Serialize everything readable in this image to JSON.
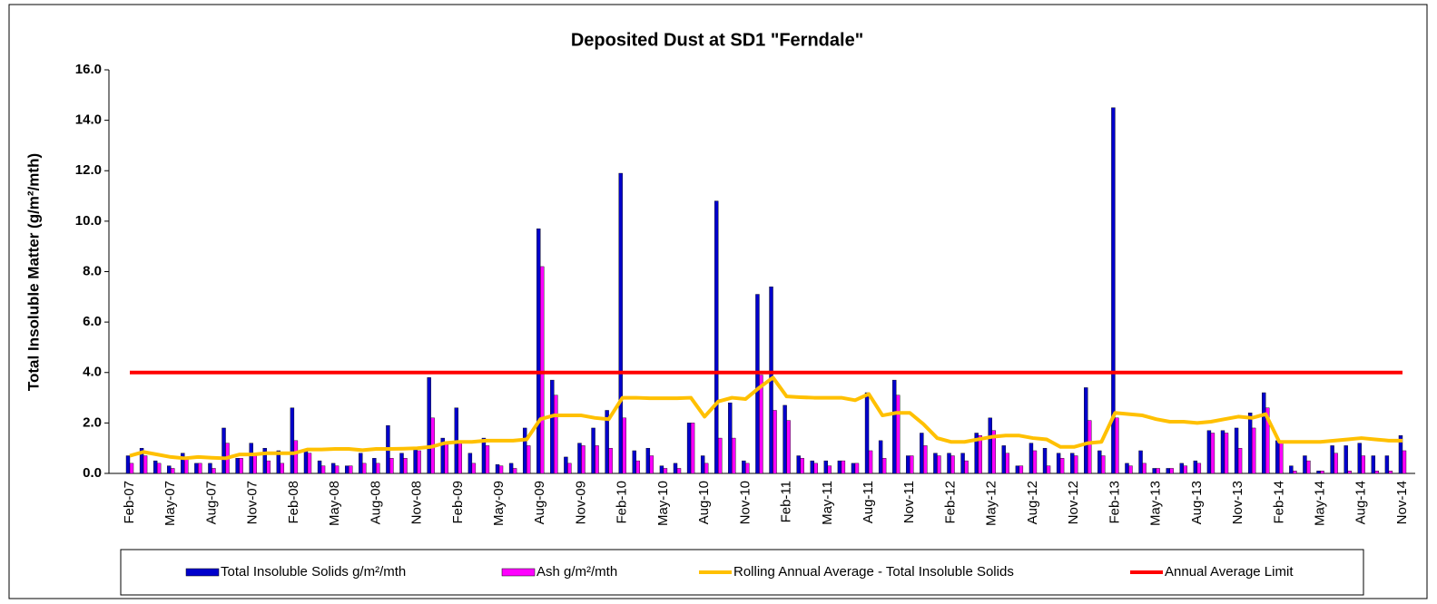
{
  "chart_data": {
    "type": "bar",
    "title": "Deposited Dust at SD1 \"Ferndale\"",
    "y_label": "Total Insoluble Matter  (g/m²/mth)",
    "categories": [
      "Feb-07",
      null,
      null,
      "May-07",
      null,
      null,
      "Aug-07",
      null,
      null,
      "Nov-07",
      null,
      null,
      "Feb-08",
      null,
      null,
      "May-08",
      null,
      null,
      "Aug-08",
      null,
      null,
      "Nov-08",
      null,
      null,
      "Feb-09",
      null,
      null,
      "May-09",
      null,
      null,
      "Aug-09",
      null,
      null,
      "Nov-09",
      null,
      null,
      "Feb-10",
      null,
      null,
      "May-10",
      null,
      null,
      "Aug-10",
      null,
      null,
      "Nov-10",
      null,
      null,
      "Feb-11",
      null,
      null,
      "May-11",
      null,
      null,
      "Aug-11",
      null,
      null,
      "Nov-11",
      null,
      null,
      "Feb-12",
      null,
      null,
      "May-12",
      null,
      null,
      "Aug-12",
      null,
      null,
      "Nov-12",
      null,
      null,
      "Feb-13",
      null,
      null,
      "May-13",
      null,
      null,
      "Aug-13",
      null,
      null,
      "Nov-13",
      null,
      null,
      "Feb-14",
      null,
      null,
      "May-14",
      null,
      null,
      "Aug-14",
      null,
      null,
      "Nov-14"
    ],
    "series": [
      {
        "name": "Total Insoluble Solids  g/m²/mth",
        "type": "bar",
        "color": "#0000cc",
        "values": [
          0.7,
          1.0,
          0.5,
          0.3,
          0.8,
          0.4,
          0.4,
          1.8,
          0.6,
          1.2,
          1.0,
          0.9,
          2.6,
          0.9,
          0.5,
          0.4,
          0.3,
          0.8,
          0.6,
          1.9,
          0.8,
          1.0,
          3.8,
          1.4,
          2.6,
          0.8,
          1.4,
          0.35,
          0.4,
          1.8,
          9.7,
          3.7,
          0.65,
          1.2,
          1.8,
          2.5,
          11.9,
          0.9,
          1.0,
          0.3,
          0.4,
          2.0,
          0.7,
          10.8,
          2.8,
          0.5,
          7.1,
          7.4,
          2.7,
          0.7,
          0.5,
          0.5,
          0.5,
          0.4,
          3.2,
          1.3,
          3.7,
          0.7,
          1.6,
          0.8,
          0.8,
          0.8,
          1.6,
          2.2,
          1.1,
          0.3,
          1.2,
          1.0,
          0.8,
          0.8,
          3.4,
          0.9,
          14.5,
          0.4,
          0.9,
          0.2,
          0.2,
          0.4,
          0.5,
          1.7,
          1.7,
          1.8,
          2.4,
          3.2,
          1.3,
          0.3,
          0.7,
          0.1,
          1.1,
          1.1,
          1.2,
          0.7,
          0.7,
          1.5
        ]
      },
      {
        "name": "Ash  g/m²/mth",
        "type": "bar",
        "color": "#ff00ff",
        "values": [
          0.4,
          0.7,
          0.4,
          0.2,
          0.6,
          0.4,
          0.2,
          1.2,
          0.6,
          0.7,
          0.5,
          0.4,
          1.3,
          0.8,
          0.3,
          0.3,
          0.3,
          0.4,
          0.4,
          0.6,
          0.6,
          0.9,
          2.2,
          1.2,
          1.2,
          0.4,
          1.1,
          0.3,
          0.2,
          1.1,
          8.2,
          3.1,
          0.4,
          1.1,
          1.1,
          1.0,
          2.2,
          0.5,
          0.7,
          0.2,
          0.2,
          2.0,
          0.4,
          1.4,
          1.4,
          0.4,
          3.9,
          2.5,
          2.1,
          0.6,
          0.4,
          0.3,
          0.5,
          0.4,
          0.9,
          0.6,
          3.1,
          0.7,
          1.1,
          0.7,
          0.7,
          0.5,
          1.5,
          1.7,
          0.8,
          0.3,
          0.9,
          0.3,
          0.6,
          0.7,
          2.1,
          0.7,
          2.2,
          0.3,
          0.4,
          0.2,
          0.2,
          0.3,
          0.4,
          1.6,
          1.6,
          1.0,
          1.8,
          2.6,
          1.2,
          0.1,
          0.5,
          0.1,
          0.8,
          0.1,
          0.7,
          0.1,
          0.1,
          0.9
        ]
      },
      {
        "name": "Rolling Annual Average - Total Insoluble Solids",
        "type": "line",
        "color": "#ffc000",
        "values": [
          0.7,
          0.85,
          0.75,
          0.65,
          0.6,
          0.65,
          0.62,
          0.6,
          0.75,
          0.75,
          0.8,
          0.8,
          0.8,
          0.95,
          0.95,
          0.97,
          0.97,
          0.92,
          0.97,
          0.97,
          0.98,
          1.0,
          1.05,
          1.2,
          1.25,
          1.25,
          1.3,
          1.3,
          1.3,
          1.35,
          2.15,
          2.3,
          2.3,
          2.3,
          2.2,
          2.15,
          3.0,
          3.0,
          2.98,
          2.98,
          2.98,
          3.0,
          2.25,
          2.85,
          3.0,
          2.95,
          3.4,
          3.8,
          3.05,
          3.02,
          3.0,
          3.0,
          3.0,
          2.9,
          3.15,
          2.3,
          2.4,
          2.4,
          1.95,
          1.4,
          1.25,
          1.25,
          1.35,
          1.45,
          1.5,
          1.5,
          1.4,
          1.35,
          1.05,
          1.05,
          1.2,
          1.25,
          2.4,
          2.35,
          2.3,
          2.15,
          2.05,
          2.05,
          2.0,
          2.05,
          2.15,
          2.25,
          2.2,
          2.35,
          1.25,
          1.25,
          1.25,
          1.25,
          1.3,
          1.35,
          1.4,
          1.35,
          1.3,
          1.3
        ]
      },
      {
        "name": "Annual Average Limit",
        "type": "line",
        "color": "#ff0000",
        "values": [
          4,
          4,
          4,
          4,
          4,
          4,
          4,
          4,
          4,
          4,
          4,
          4,
          4,
          4,
          4,
          4,
          4,
          4,
          4,
          4,
          4,
          4,
          4,
          4,
          4,
          4,
          4,
          4,
          4,
          4,
          4,
          4,
          4,
          4,
          4,
          4,
          4,
          4,
          4,
          4,
          4,
          4,
          4,
          4,
          4,
          4,
          4,
          4,
          4,
          4,
          4,
          4,
          4,
          4,
          4,
          4,
          4,
          4,
          4,
          4,
          4,
          4,
          4,
          4,
          4,
          4,
          4,
          4,
          4,
          4,
          4,
          4,
          4,
          4,
          4,
          4,
          4,
          4,
          4,
          4,
          4,
          4,
          4,
          4,
          4,
          4,
          4,
          4,
          4,
          4,
          4,
          4,
          4,
          4
        ]
      }
    ],
    "ylim": [
      0,
      16
    ],
    "yticks": [
      {
        "value": 0,
        "label": "0.0"
      },
      {
        "value": 2,
        "label": "2.0"
      },
      {
        "value": 4,
        "label": "4.0"
      },
      {
        "value": 6,
        "label": "6.0"
      },
      {
        "value": 8,
        "label": "8.0"
      },
      {
        "value": 10,
        "label": "10.0"
      },
      {
        "value": 12,
        "label": "12.0"
      },
      {
        "value": 14,
        "label": "14.0"
      },
      {
        "value": 16,
        "label": "16.0"
      }
    ],
    "grid": false,
    "legend": "bottom"
  }
}
